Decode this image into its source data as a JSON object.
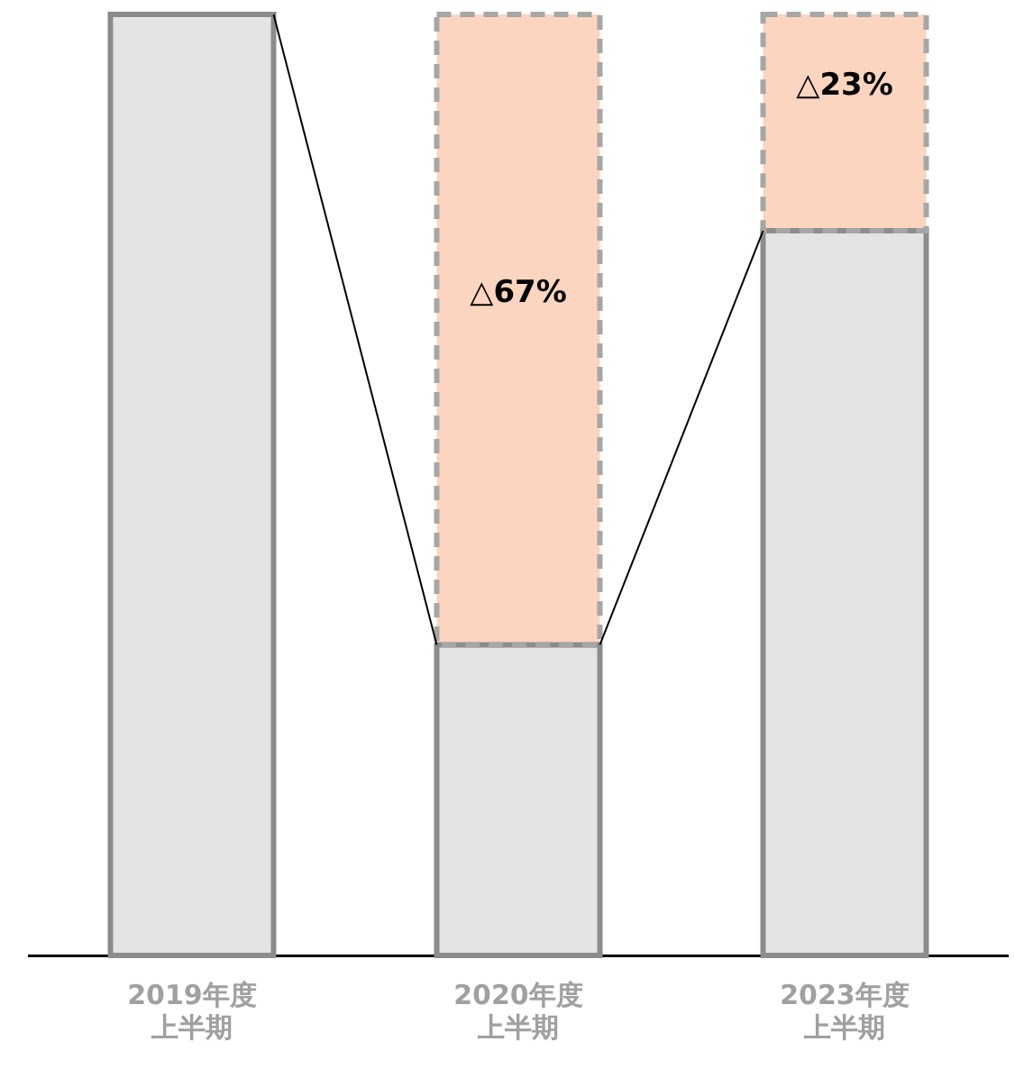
{
  "chart_data": {
    "type": "bar",
    "stacked": true,
    "ylim": [
      0,
      100
    ],
    "tick_labels": "x",
    "categories": [
      "2019年度上半期",
      "2020年度上半期",
      "2023年度上半期"
    ],
    "series": [
      {
        "color": "#e4e4e4",
        "values": [
          100,
          33,
          77
        ]
      },
      {
        "color": "#fbd5bf",
        "values": [
          null,
          67,
          23
        ],
        "value_labels": [
          null,
          "△67%",
          "△23%"
        ]
      }
    ],
    "grid": false,
    "legend": false
  }
}
